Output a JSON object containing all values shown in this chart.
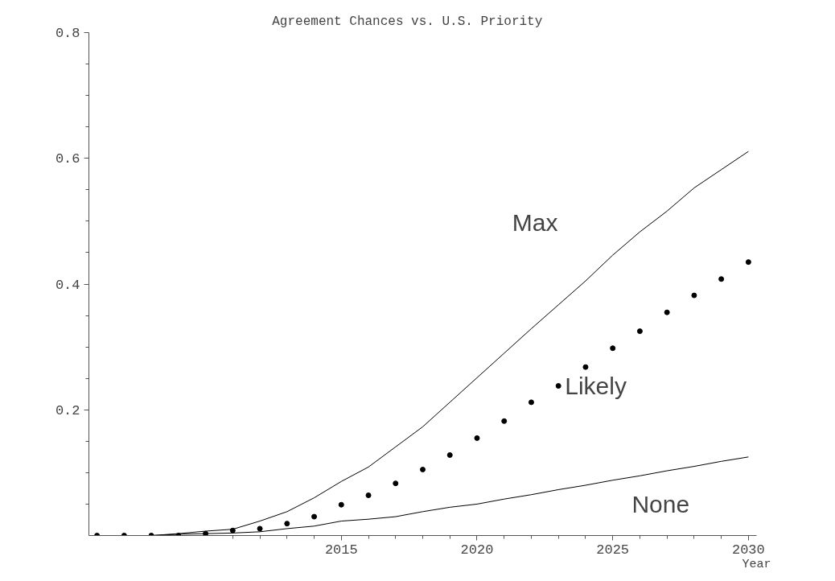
{
  "chart_data": {
    "type": "line",
    "title": "Agreement   Chances   vs. U.S. Priority",
    "xlabel": "Year",
    "x": [
      2006,
      2007,
      2008,
      2009,
      2010,
      2011,
      2012,
      2013,
      2014,
      2015,
      2016,
      2017,
      2018,
      2019,
      2020,
      2021,
      2022,
      2023,
      2024,
      2025,
      2026,
      2027,
      2028,
      2029,
      2030
    ],
    "series": [
      {
        "name": "Max",
        "color": "#000000",
        "values": [
          0,
          0,
          0,
          0.003,
          0.007,
          0.01,
          0.023,
          0.038,
          0.06,
          0.086,
          0.109,
          0.141,
          0.173,
          0.212,
          0.251,
          0.29,
          0.329,
          0.367,
          0.405,
          0.446,
          0.483,
          0.516,
          0.553,
          0.582,
          0.611
        ]
      },
      {
        "name": "Likely",
        "type": "scatter",
        "marker": "circle",
        "color": "#000000",
        "values": [
          0,
          0,
          0,
          0,
          0.003,
          0.008,
          0.011,
          0.019,
          0.03,
          0.049,
          0.064,
          0.083,
          0.105,
          0.128,
          0.155,
          0.182,
          0.212,
          0.238,
          0.268,
          0.298,
          0.325,
          0.355,
          0.382,
          0.408,
          0.435
        ]
      },
      {
        "name": "None",
        "color": "#000000",
        "values": [
          0,
          0,
          0,
          0.002,
          0.003,
          0.004,
          0.006,
          0.011,
          0.015,
          0.023,
          0.026,
          0.03,
          0.038,
          0.045,
          0.05,
          0.058,
          0.065,
          0.073,
          0.08,
          0.088,
          0.095,
          0.103,
          0.11,
          0.118,
          0.125
        ]
      }
    ],
    "xlim": [
      2005.7,
      2030.3
    ],
    "ylim": [
      0,
      0.8
    ],
    "xticks": [
      {
        "value": 2011,
        "label": null
      },
      {
        "value": 2012,
        "label": null
      },
      {
        "value": 2013,
        "label": null
      },
      {
        "value": 2014,
        "label": null
      },
      2015,
      {
        "value": 2016,
        "label": null
      },
      {
        "value": 2017,
        "label": null
      },
      {
        "value": 2018,
        "label": null
      },
      {
        "value": 2019,
        "label": null
      },
      2020,
      {
        "value": 2021,
        "label": null
      },
      {
        "value": 2022,
        "label": null
      },
      {
        "value": 2023,
        "label": null
      },
      {
        "value": 2024,
        "label": null
      },
      2025,
      {
        "value": 2026,
        "label": null
      },
      {
        "value": 2027,
        "label": null
      },
      {
        "value": 2028,
        "label": null
      },
      {
        "value": 2029,
        "label": null
      },
      2030
    ],
    "yticks": [
      {
        "value": 0.05,
        "label": null
      },
      {
        "value": 0.1,
        "label": null
      },
      {
        "value": 0.15,
        "label": null
      },
      {
        "value": 0.2,
        "label": "0.2"
      },
      {
        "value": 0.25,
        "label": null
      },
      {
        "value": 0.3,
        "label": null
      },
      {
        "value": 0.35,
        "label": null
      },
      {
        "value": 0.4,
        "label": "0.4"
      },
      {
        "value": 0.45,
        "label": null
      },
      {
        "value": 0.5,
        "label": null
      },
      {
        "value": 0.55,
        "label": null
      },
      {
        "value": 0.6,
        "label": "0.6"
      },
      {
        "value": 0.65,
        "label": null
      },
      {
        "value": 0.7,
        "label": null
      },
      {
        "value": 0.75,
        "label": null
      },
      {
        "value": 0.8,
        "label": "0.8"
      }
    ],
    "grid": false
  }
}
